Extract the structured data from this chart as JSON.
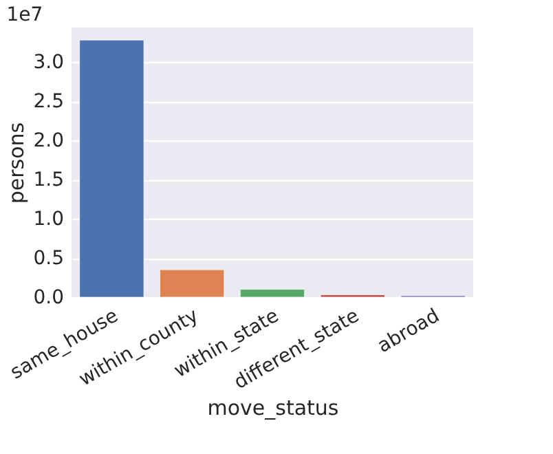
{
  "chart_data": {
    "type": "bar",
    "xlabel": "move_status",
    "ylabel": "persons",
    "annotations": [
      "1e7"
    ],
    "categories": [
      "same_house",
      "within_county",
      "within_state",
      "different_state",
      "abroad"
    ],
    "values": [
      3.28,
      0.35,
      0.1,
      0.03,
      0.02
    ],
    "colors": [
      "#4c72b0",
      "#dd8452",
      "#55a868",
      "#c44e52",
      "#8172b3"
    ],
    "ylim": [
      0,
      3.44
    ],
    "yticks": [
      {
        "value": 0,
        "label": "0.0"
      },
      {
        "value": 0.5,
        "label": "0.5"
      },
      {
        "value": 1,
        "label": "1.0"
      },
      {
        "value": 1.5,
        "label": "1.5"
      },
      {
        "value": 2,
        "label": "2.0"
      },
      {
        "value": 2.5,
        "label": "2.5"
      },
      {
        "value": 3,
        "label": "3.0"
      }
    ],
    "grid": "y"
  }
}
